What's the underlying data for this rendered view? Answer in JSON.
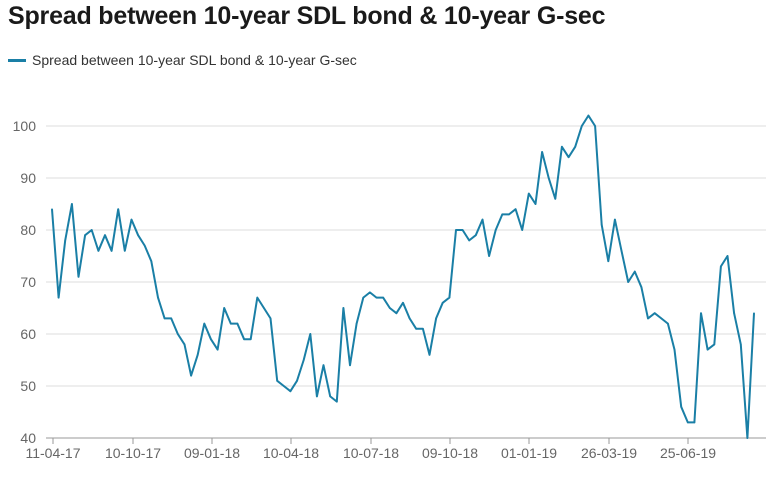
{
  "chart_data": {
    "type": "line",
    "title": "Spread between 10-year SDL bond & 10-year G-sec",
    "xlabel": "",
    "ylabel": "",
    "x_tick_labels": [
      "11-04-17",
      "10-10-17",
      "09-01-18",
      "10-04-18",
      "10-07-18",
      "09-10-18",
      "01-01-19",
      "26-03-19",
      "25-06-19"
    ],
    "yticks": [
      40,
      50,
      60,
      70,
      80,
      90,
      100
    ],
    "ylim": [
      40,
      104
    ],
    "grid": true,
    "legend_position": "top-left",
    "series": [
      {
        "name": "Spread between 10-year SDL bond & 10-year G-sec",
        "color": "#1a7fa6",
        "values": [
          84,
          67,
          78,
          85,
          71,
          79,
          80,
          76,
          79,
          76,
          84,
          76,
          82,
          79,
          77,
          74,
          67,
          63,
          63,
          60,
          58,
          52,
          56,
          62,
          59,
          57,
          65,
          62,
          62,
          59,
          59,
          67,
          65,
          63,
          51,
          50,
          49,
          51,
          55,
          60,
          48,
          54,
          48,
          47,
          65,
          54,
          62,
          67,
          68,
          67,
          67,
          65,
          64,
          66,
          63,
          61,
          61,
          56,
          63,
          66,
          67,
          80,
          80,
          78,
          79,
          82,
          75,
          80,
          83,
          83,
          84,
          80,
          87,
          85,
          95,
          90,
          86,
          96,
          94,
          96,
          100,
          102,
          100,
          81,
          74,
          82,
          76,
          70,
          72,
          69,
          63,
          64,
          63,
          62,
          57,
          46,
          43,
          43,
          64,
          57,
          58,
          73,
          75,
          64,
          58,
          40,
          64
        ]
      }
    ]
  }
}
